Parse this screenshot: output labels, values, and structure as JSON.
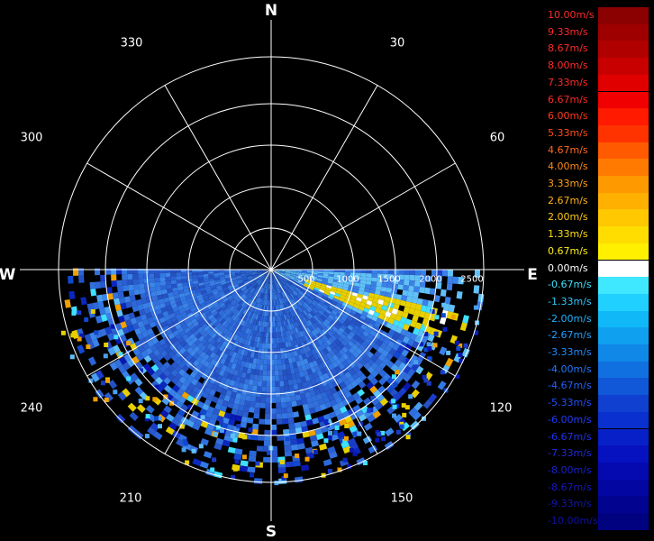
{
  "compass": {
    "north": "N",
    "south": "S",
    "east": "E",
    "west": "W"
  },
  "angles": {
    "a330": "330",
    "a30": "30",
    "a300": "300",
    "a60": "60",
    "a240": "240",
    "a120": "120",
    "a210": "210",
    "a150": "150"
  },
  "range_labels": [
    "500",
    "1000",
    "1500",
    "2000",
    "2500"
  ],
  "colors": {
    "background": "#000000",
    "grid": "#ffffff",
    "zero": "#ffffff",
    "approach_main": "#2a6fe0",
    "recede_main": "#e0c800"
  },
  "legend": {
    "items": [
      {
        "label": "10.00m/s",
        "color": "#8b0000",
        "text_color": "#ff2a2a"
      },
      {
        "label": "9.33m/s",
        "color": "#9e0000",
        "text_color": "#ff2a2a"
      },
      {
        "label": "8.67m/s",
        "color": "#b00000",
        "text_color": "#ff2a2a"
      },
      {
        "label": "8.00m/s",
        "color": "#c80000",
        "text_color": "#ff2a2a"
      },
      {
        "label": "7.33m/s",
        "color": "#e00000",
        "text_color": "#ff2a2a"
      },
      {
        "label": "6.67m/s",
        "color": "#f00000",
        "text_color": "#ff2a2a"
      },
      {
        "label": "6.00m/s",
        "color": "#ff1a00",
        "text_color": "#ff3a1a"
      },
      {
        "label": "5.33m/s",
        "color": "#ff3300",
        "text_color": "#ff4d1a"
      },
      {
        "label": "4.67m/s",
        "color": "#ff5a00",
        "text_color": "#ff6a1a"
      },
      {
        "label": "4.00m/s",
        "color": "#ff7a00",
        "text_color": "#ff8a1a"
      },
      {
        "label": "3.33m/s",
        "color": "#ff9900",
        "text_color": "#ffa21a"
      },
      {
        "label": "2.67m/s",
        "color": "#ffb000",
        "text_color": "#ffb41a"
      },
      {
        "label": "2.00m/s",
        "color": "#ffc800",
        "text_color": "#ffc81a"
      },
      {
        "label": "1.33m/s",
        "color": "#ffdd00",
        "text_color": "#ffdd1a"
      },
      {
        "label": "0.67m/s",
        "color": "#fff000",
        "text_color": "#fff01a"
      },
      {
        "label": "0.00m/s",
        "color": "#ffffff",
        "text_color": "#ffffff"
      },
      {
        "label": "-0.67m/s",
        "color": "#40e8ff",
        "text_color": "#40e0ff"
      },
      {
        "label": "-1.33m/s",
        "color": "#20d0ff",
        "text_color": "#30c8ff"
      },
      {
        "label": "-2.00m/s",
        "color": "#10b8f8",
        "text_color": "#20b4ff"
      },
      {
        "label": "-2.67m/s",
        "color": "#10a0f0",
        "text_color": "#20a0ff"
      },
      {
        "label": "-3.33m/s",
        "color": "#1088e8",
        "text_color": "#208cff"
      },
      {
        "label": "-4.00m/s",
        "color": "#1070e0",
        "text_color": "#2078ff"
      },
      {
        "label": "-4.67m/s",
        "color": "#1058d8",
        "text_color": "#2064ff"
      },
      {
        "label": "-5.33m/s",
        "color": "#1040d0",
        "text_color": "#2050ff"
      },
      {
        "label": "-6.00m/s",
        "color": "#0a30d0",
        "text_color": "#203cff"
      },
      {
        "label": "-6.67m/s",
        "color": "#0820c8",
        "text_color": "#2030f0"
      },
      {
        "label": "-7.33m/s",
        "color": "#0612c0",
        "text_color": "#2028e0"
      },
      {
        "label": "-8.00m/s",
        "color": "#040ab0",
        "text_color": "#1820d0"
      },
      {
        "label": "-8.67m/s",
        "color": "#0306a0",
        "text_color": "#1818c0"
      },
      {
        "label": "-9.33m/s",
        "color": "#020490",
        "text_color": "#1414b0"
      },
      {
        "label": "-10.00m/s",
        "color": "#010280",
        "text_color": "#1010a0"
      }
    ]
  }
}
